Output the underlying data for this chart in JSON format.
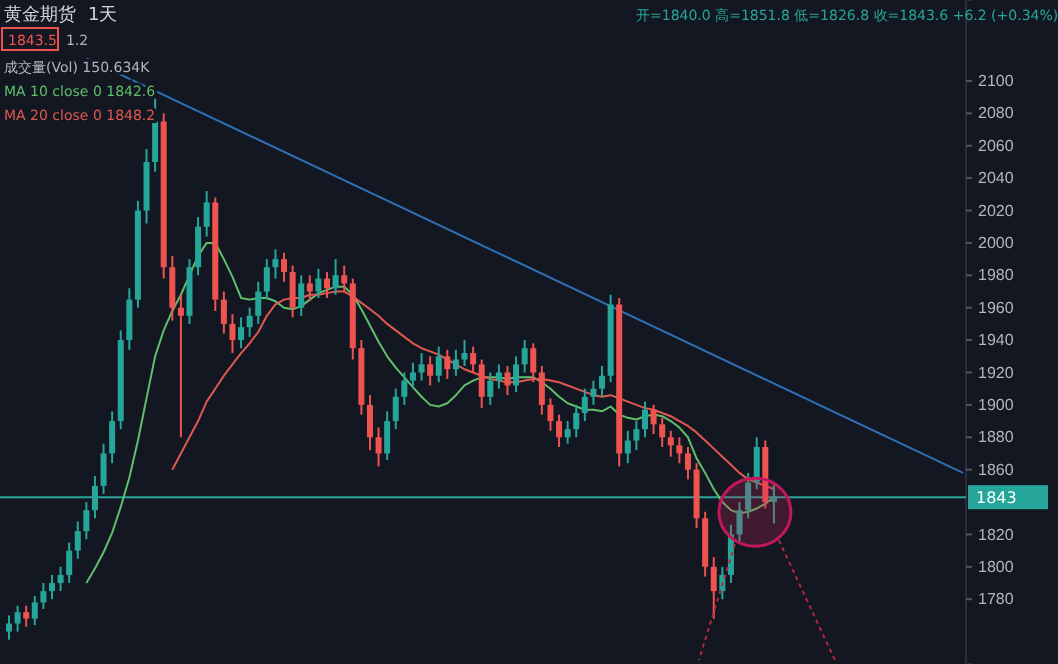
{
  "chart_data": {
    "type": "candlestick",
    "title": "黄金期货",
    "subtitle": "1天",
    "annotations": [
      "开=1840.0 高=1851.8 低=1826.8 收=1843.6 +6.2 (+0.34%)",
      "1843.5",
      "1.2",
      "成交量(Vol) 150.634K"
    ],
    "categories": [
      null,
      null,
      null,
      null,
      null,
      null,
      null,
      null,
      null,
      null,
      null,
      null,
      null,
      null,
      null,
      null,
      null,
      null,
      null,
      null,
      null,
      null,
      null,
      null,
      null,
      null,
      null,
      null,
      null,
      null,
      null,
      null,
      null,
      null,
      null,
      null,
      null,
      null,
      null,
      null,
      null,
      null,
      null,
      null,
      null,
      null,
      null,
      null,
      null,
      null,
      null,
      null,
      null,
      null,
      null,
      null,
      null,
      null,
      null,
      null,
      null,
      null,
      null,
      null,
      null,
      null,
      null,
      null,
      null,
      null,
      null,
      null,
      null,
      null,
      null,
      null,
      null,
      null,
      null,
      null,
      null,
      null,
      null,
      null,
      null,
      null,
      null,
      null,
      null,
      null,
      null,
      null,
      null,
      null,
      null,
      null,
      null,
      null,
      null,
      null,
      null,
      null,
      null,
      null,
      null,
      null,
      null,
      null,
      null,
      null,
      null,
      null
    ],
    "ohlc": [
      [
        1760,
        1770,
        1755,
        1765
      ],
      [
        1765,
        1776,
        1760,
        1772
      ],
      [
        1772,
        1776,
        1763,
        1768
      ],
      [
        1768,
        1782,
        1764,
        1778
      ],
      [
        1778,
        1790,
        1774,
        1785
      ],
      [
        1785,
        1795,
        1780,
        1790
      ],
      [
        1790,
        1800,
        1785,
        1795
      ],
      [
        1795,
        1815,
        1790,
        1810
      ],
      [
        1810,
        1828,
        1805,
        1822
      ],
      [
        1822,
        1840,
        1817,
        1835
      ],
      [
        1835,
        1856,
        1830,
        1850
      ],
      [
        1850,
        1876,
        1845,
        1870
      ],
      [
        1870,
        1896,
        1864,
        1890
      ],
      [
        1890,
        1946,
        1885,
        1940
      ],
      [
        1940,
        1972,
        1934,
        1965
      ],
      [
        1965,
        2026,
        1960,
        2020
      ],
      [
        2020,
        2058,
        2012,
        2050
      ],
      [
        2050,
        2089,
        2044,
        2075
      ],
      [
        2075,
        2080,
        1978,
        1985
      ],
      [
        1985,
        1992,
        1952,
        1960
      ],
      [
        1960,
        1968,
        1880,
        1955
      ],
      [
        1955,
        1990,
        1950,
        1985
      ],
      [
        1985,
        2016,
        1980,
        2010
      ],
      [
        2010,
        2032,
        2004,
        2025
      ],
      [
        2025,
        2028,
        1958,
        1965
      ],
      [
        1965,
        1970,
        1944,
        1950
      ],
      [
        1950,
        1956,
        1932,
        1940
      ],
      [
        1940,
        1954,
        1935,
        1948
      ],
      [
        1948,
        1960,
        1942,
        1955
      ],
      [
        1955,
        1976,
        1950,
        1970
      ],
      [
        1970,
        1990,
        1965,
        1985
      ],
      [
        1985,
        1996,
        1978,
        1990
      ],
      [
        1990,
        1994,
        1976,
        1982
      ],
      [
        1982,
        1986,
        1954,
        1960
      ],
      [
        1960,
        1980,
        1955,
        1975
      ],
      [
        1975,
        1980,
        1964,
        1970
      ],
      [
        1970,
        1984,
        1966,
        1978
      ],
      [
        1978,
        1982,
        1966,
        1972
      ],
      [
        1972,
        1990,
        1968,
        1980
      ],
      [
        1980,
        1986,
        1970,
        1975
      ],
      [
        1975,
        1978,
        1928,
        1935
      ],
      [
        1935,
        1940,
        1894,
        1900
      ],
      [
        1900,
        1906,
        1872,
        1880
      ],
      [
        1880,
        1886,
        1862,
        1870
      ],
      [
        1870,
        1896,
        1866,
        1890
      ],
      [
        1890,
        1910,
        1885,
        1905
      ],
      [
        1905,
        1920,
        1900,
        1915
      ],
      [
        1915,
        1926,
        1910,
        1920
      ],
      [
        1920,
        1932,
        1915,
        1925
      ],
      [
        1925,
        1930,
        1912,
        1918
      ],
      [
        1918,
        1936,
        1914,
        1930
      ],
      [
        1930,
        1934,
        1916,
        1922
      ],
      [
        1922,
        1934,
        1918,
        1928
      ],
      [
        1928,
        1940,
        1924,
        1932
      ],
      [
        1932,
        1936,
        1920,
        1925
      ],
      [
        1925,
        1928,
        1898,
        1905
      ],
      [
        1905,
        1920,
        1900,
        1915
      ],
      [
        1915,
        1925,
        1910,
        1920
      ],
      [
        1920,
        1924,
        1906,
        1912
      ],
      [
        1912,
        1930,
        1908,
        1925
      ],
      [
        1925,
        1940,
        1920,
        1935
      ],
      [
        1935,
        1938,
        1914,
        1920
      ],
      [
        1920,
        1924,
        1894,
        1900
      ],
      [
        1900,
        1904,
        1884,
        1890
      ],
      [
        1890,
        1894,
        1874,
        1880
      ],
      [
        1880,
        1890,
        1876,
        1885
      ],
      [
        1885,
        1900,
        1880,
        1895
      ],
      [
        1895,
        1910,
        1890,
        1905
      ],
      [
        1905,
        1915,
        1900,
        1910
      ],
      [
        1910,
        1924,
        1905,
        1918
      ],
      [
        1918,
        1968,
        1914,
        1962
      ],
      [
        1962,
        1966,
        1862,
        1870
      ],
      [
        1870,
        1884,
        1864,
        1878
      ],
      [
        1878,
        1890,
        1872,
        1885
      ],
      [
        1885,
        1902,
        1880,
        1897
      ],
      [
        1897,
        1900,
        1882,
        1888
      ],
      [
        1888,
        1892,
        1874,
        1880
      ],
      [
        1880,
        1884,
        1868,
        1875
      ],
      [
        1875,
        1880,
        1864,
        1870
      ],
      [
        1870,
        1874,
        1854,
        1860
      ],
      [
        1860,
        1864,
        1824,
        1830
      ],
      [
        1830,
        1834,
        1794,
        1800
      ],
      [
        1800,
        1806,
        1768,
        1785
      ],
      [
        1785,
        1800,
        1780,
        1795
      ],
      [
        1795,
        1826,
        1790,
        1820
      ],
      [
        1820,
        1840,
        1815,
        1835
      ],
      [
        1835,
        1858,
        1830,
        1852
      ],
      [
        1852,
        1880,
        1848,
        1874
      ],
      [
        1874,
        1878,
        1836,
        1840
      ],
      [
        1840.0,
        1851.8,
        1826.8,
        1843.6
      ],
      null,
      null,
      null,
      null,
      null,
      null,
      null,
      null,
      null,
      null,
      null,
      null,
      null,
      null,
      null,
      null,
      null,
      null,
      null,
      null,
      null,
      null
    ],
    "colors": [
      "#26a69a",
      "#26a69a",
      "#ef5350",
      "#26a69a",
      "#26a69a",
      "#26a69a",
      "#26a69a",
      "#26a69a",
      "#26a69a",
      "#26a69a",
      "#26a69a",
      "#26a69a",
      "#26a69a",
      "#26a69a",
      "#26a69a",
      "#26a69a",
      "#26a69a",
      "#26a69a",
      "#ef5350",
      "#ef5350",
      "#ef5350",
      "#26a69a",
      "#26a69a",
      "#26a69a",
      "#ef5350",
      "#ef5350",
      "#ef5350",
      "#26a69a",
      "#26a69a",
      "#26a69a",
      "#26a69a",
      "#26a69a",
      "#ef5350",
      "#ef5350",
      "#26a69a",
      "#ef5350",
      "#26a69a",
      "#ef5350",
      "#26a69a",
      "#ef5350",
      "#ef5350",
      "#ef5350",
      "#ef5350",
      "#ef5350",
      "#26a69a",
      "#26a69a",
      "#26a69a",
      "#26a69a",
      "#26a69a",
      "#ef5350",
      "#26a69a",
      "#ef5350",
      "#26a69a",
      "#26a69a",
      "#ef5350",
      "#ef5350",
      "#26a69a",
      "#26a69a",
      "#ef5350",
      "#26a69a",
      "#26a69a",
      "#ef5350",
      "#ef5350",
      "#ef5350",
      "#ef5350",
      "#26a69a",
      "#26a69a",
      "#26a69a",
      "#26a69a",
      "#26a69a",
      "#26a69a",
      "#ef5350",
      "#26a69a",
      "#26a69a",
      "#26a69a",
      "#ef5350",
      "#ef5350",
      "#ef5350",
      "#ef5350",
      "#ef5350",
      "#ef5350",
      "#ef5350",
      "#ef5350",
      "#26a69a",
      "#26a69a",
      "#26a69a",
      "#26a69a",
      "#26a69a",
      "#ef5350",
      "#26a69a",
      null,
      null,
      null,
      null,
      null,
      null,
      null,
      null,
      null,
      null,
      null,
      null,
      null,
      null,
      null,
      null,
      null,
      null,
      null,
      null,
      null,
      null
    ],
    "series": [
      {
        "type": "line",
        "name": "MA 10 close 0 1842.6",
        "color": "#5fbf6a",
        "values": [
          null,
          null,
          null,
          null,
          null,
          null,
          null,
          null,
          null,
          1790,
          1799,
          1809,
          1821,
          1837,
          1855,
          1878,
          1904,
          1930,
          1946,
          1958,
          1968,
          1980,
          1992,
          2000,
          2000,
          1990,
          1979,
          1966,
          1965,
          1966,
          1966,
          1964,
          1960,
          1959,
          1961,
          1965,
          1969,
          1971,
          1973,
          1973,
          1968,
          1959,
          1949,
          1939,
          1930,
          1923,
          1917,
          1911,
          1905,
          1900,
          1899,
          1901,
          1906,
          1912,
          1915,
          1917,
          1917,
          1917,
          1916,
          1917,
          1917,
          1917,
          1914,
          1910,
          1905,
          1901,
          1899,
          1897,
          1897,
          1896,
          1899,
          1894,
          1892,
          1891,
          1893,
          1894,
          1893,
          1890,
          1886,
          1880,
          1867,
          1858,
          1848,
          1840,
          1835,
          1833,
          1834,
          1836,
          1839,
          1843,
          null,
          null,
          null,
          null,
          null,
          null,
          null,
          null,
          null,
          null,
          null,
          null,
          null,
          null,
          null,
          null,
          null,
          null,
          null,
          null,
          null,
          null
        ]
      },
      {
        "type": "line",
        "name": "MA 20 close 0 1848.2",
        "color": "#e0584f",
        "values": [
          null,
          null,
          null,
          null,
          null,
          null,
          null,
          null,
          null,
          null,
          null,
          null,
          null,
          null,
          null,
          null,
          null,
          null,
          null,
          1860,
          1870,
          1880,
          1890,
          1902,
          1910,
          1918,
          1925,
          1932,
          1938,
          1945,
          1955,
          1962,
          1965,
          1966,
          1966,
          1968,
          1968,
          1969,
          1970,
          1970,
          1967,
          1963,
          1959,
          1955,
          1950,
          1946,
          1942,
          1938,
          1935,
          1933,
          1931,
          1928,
          1925,
          1922,
          1920,
          1918,
          1916,
          1915,
          1914,
          1914,
          1915,
          1916,
          1916,
          1915,
          1914,
          1912,
          1910,
          1908,
          1906,
          1905,
          1906,
          1904,
          1902,
          1900,
          1898,
          1897,
          1895,
          1893,
          1890,
          1887,
          1883,
          1878,
          1873,
          1868,
          1863,
          1858,
          1854,
          1852,
          1850,
          1848,
          null,
          null,
          null,
          null,
          null,
          null,
          null,
          null,
          null,
          null,
          null,
          null,
          null,
          null,
          null,
          null,
          null,
          null,
          null,
          null,
          null,
          null
        ]
      },
      {
        "type": "line",
        "color": "#2f6fb3",
        "values": [
          null,
          null,
          null,
          null,
          null,
          null,
          null,
          null,
          null,
          2114,
          null,
          null,
          null,
          null,
          null,
          null,
          null,
          null,
          null,
          null,
          null,
          null,
          null,
          null,
          null,
          null,
          null,
          null,
          null,
          null,
          null,
          null,
          null,
          null,
          null,
          null,
          null,
          null,
          null,
          null,
          null,
          null,
          null,
          null,
          null,
          null,
          null,
          null,
          null,
          null,
          null,
          null,
          null,
          null,
          null,
          null,
          null,
          null,
          null,
          null,
          null,
          null,
          null,
          null,
          null,
          null,
          null,
          null,
          null,
          null,
          null,
          null,
          null,
          null,
          null,
          null,
          null,
          null,
          null,
          null,
          null,
          null,
          null,
          null,
          null,
          null,
          null,
          null,
          null,
          null,
          null,
          null,
          null,
          null,
          null,
          null,
          null,
          null,
          null,
          null,
          null,
          null,
          null,
          null,
          null,
          null,
          null,
          null,
          null,
          null,
          null,
          1858
        ]
      }
    ],
    "ref_lines": [
      {
        "axis": "y",
        "value": 1843,
        "label": "1843",
        "color": "#26a69a"
      }
    ],
    "ylim": [
      1740,
      2150
    ],
    "yticks": [
      1780,
      1800,
      1820,
      1860,
      1880,
      1900,
      1920,
      1940,
      1960,
      1980,
      2000,
      2020,
      2040,
      2060,
      2080,
      2100
    ],
    "tick_labels": "y",
    "legend": "top left"
  }
}
